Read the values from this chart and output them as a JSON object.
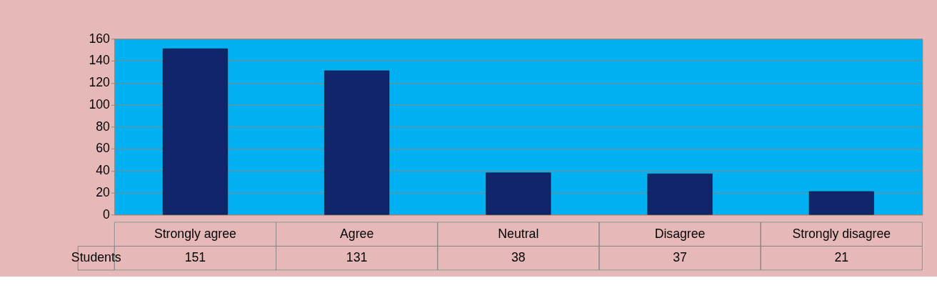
{
  "chart_data": {
    "type": "bar",
    "categories": [
      "Strongly agree",
      "Agree",
      "Neutral",
      "Disagree",
      "Strongly disagree"
    ],
    "series": [
      {
        "name": "Students",
        "color": "#10256b",
        "values": [
          151,
          131,
          38,
          37,
          21
        ]
      }
    ],
    "ylim": [
      0,
      160
    ],
    "yticks": [
      0,
      20,
      40,
      60,
      80,
      100,
      120,
      140,
      160
    ],
    "grid": "y",
    "data_labels": true
  }
}
